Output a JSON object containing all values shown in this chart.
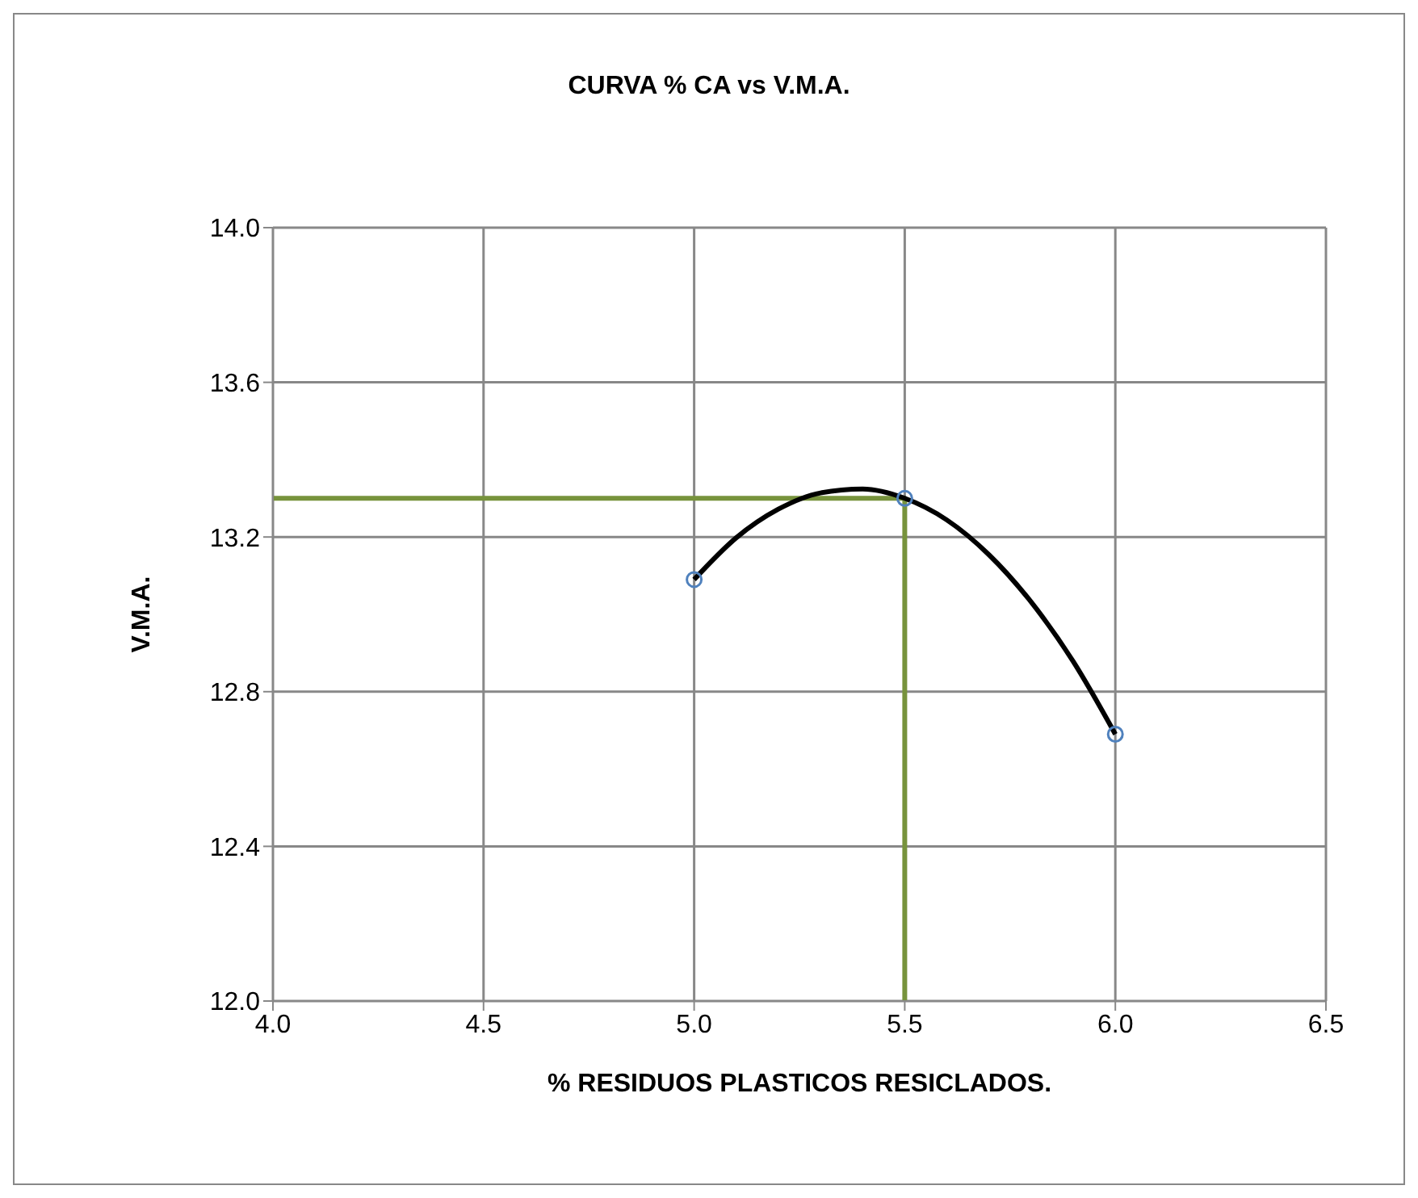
{
  "chart_data": {
    "type": "scatter",
    "title": "CURVA % CA vs V.M.A.",
    "xlabel": "% RESIDUOS PLASTICOS RESICLADOS.",
    "ylabel": "V.M.A.",
    "xlim": [
      4.0,
      6.5
    ],
    "xticks": [
      {
        "value": 4.0,
        "label": "4.0"
      },
      {
        "value": 4.5,
        "label": "4.5"
      },
      {
        "value": 5.0,
        "label": "5.0"
      },
      {
        "value": 5.5,
        "label": "5.5"
      },
      {
        "value": 6.0,
        "label": "6.0"
      },
      {
        "value": 6.5,
        "label": "6.5"
      }
    ],
    "ylim": [
      12.0,
      14.0
    ],
    "yticks": [
      {
        "value": 12.0,
        "label": "12.0"
      },
      {
        "value": 12.4,
        "label": "12.4"
      },
      {
        "value": 12.8,
        "label": "12.8"
      },
      {
        "value": 13.2,
        "label": "13.2"
      },
      {
        "value": 13.6,
        "label": "13.6"
      },
      {
        "value": 14.0,
        "label": "14.0"
      }
    ],
    "grid": true,
    "series": [
      {
        "type": "line",
        "color": "#77933c",
        "x": [
          4.0,
          5.5,
          5.5
        ],
        "values": [
          13.3,
          13.3,
          12.0
        ],
        "marker": "none",
        "line_style": "solid"
      },
      {
        "type": "line",
        "color": "#000000",
        "x": [
          5.0,
          5.1,
          5.2,
          5.3,
          5.4,
          5.5,
          5.6,
          5.7,
          5.8,
          5.9,
          6.0
        ],
        "values": [
          13.09,
          13.198,
          13.272,
          13.314,
          13.324,
          13.3,
          13.244,
          13.154,
          13.032,
          12.878,
          12.69
        ],
        "marker": "none",
        "line_style": "solid"
      },
      {
        "color": "#4f81bd",
        "x": [
          5.0,
          5.5,
          6.0
        ],
        "values": [
          13.09,
          13.3,
          12.69
        ],
        "marker": "circle"
      }
    ]
  }
}
